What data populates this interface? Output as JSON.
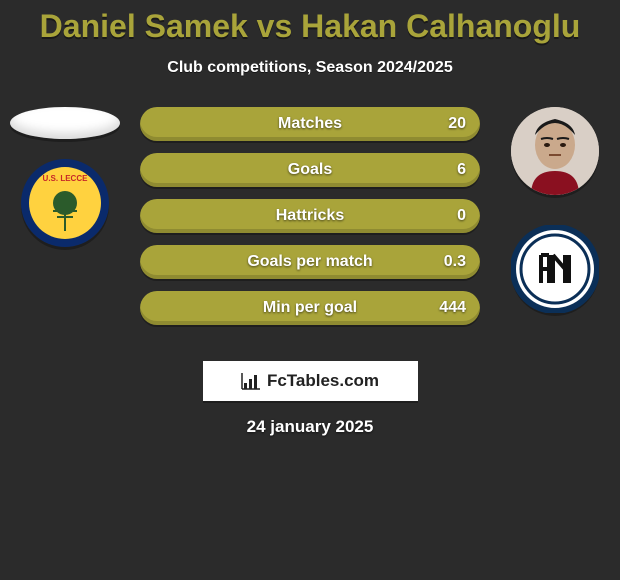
{
  "title": {
    "player1": "Daniel Samek",
    "vs": "vs",
    "player2": "Hakan Calhanoglu",
    "color": "#a9a43a"
  },
  "subtitle": "Club competitions, Season 2024/2025",
  "bars": [
    {
      "label": "Matches",
      "value_right": "20",
      "color": "#a9a43a"
    },
    {
      "label": "Goals",
      "value_right": "6",
      "color": "#a9a43a"
    },
    {
      "label": "Hattricks",
      "value_right": "0",
      "color": "#a9a43a"
    },
    {
      "label": "Goals per match",
      "value_right": "0.3",
      "color": "#a9a43a"
    },
    {
      "label": "Min per goal",
      "value_right": "444",
      "color": "#a9a43a"
    }
  ],
  "left": {
    "crest_label": "U.S. LECCE",
    "crest_bg_outer": "#0a2a6b",
    "crest_bg_inner": "#ffd23f",
    "crest_text_color": "#c62828"
  },
  "right": {
    "photo_bg": "#d9cfc6",
    "crest_ring": "#0b2f57",
    "crest_inner": "#ffffff",
    "crest_stripe": "#111111"
  },
  "brand": "FcTables.com",
  "date": "24 january 2025",
  "colors": {
    "background": "#2b2b2b",
    "text": "#ffffff"
  }
}
